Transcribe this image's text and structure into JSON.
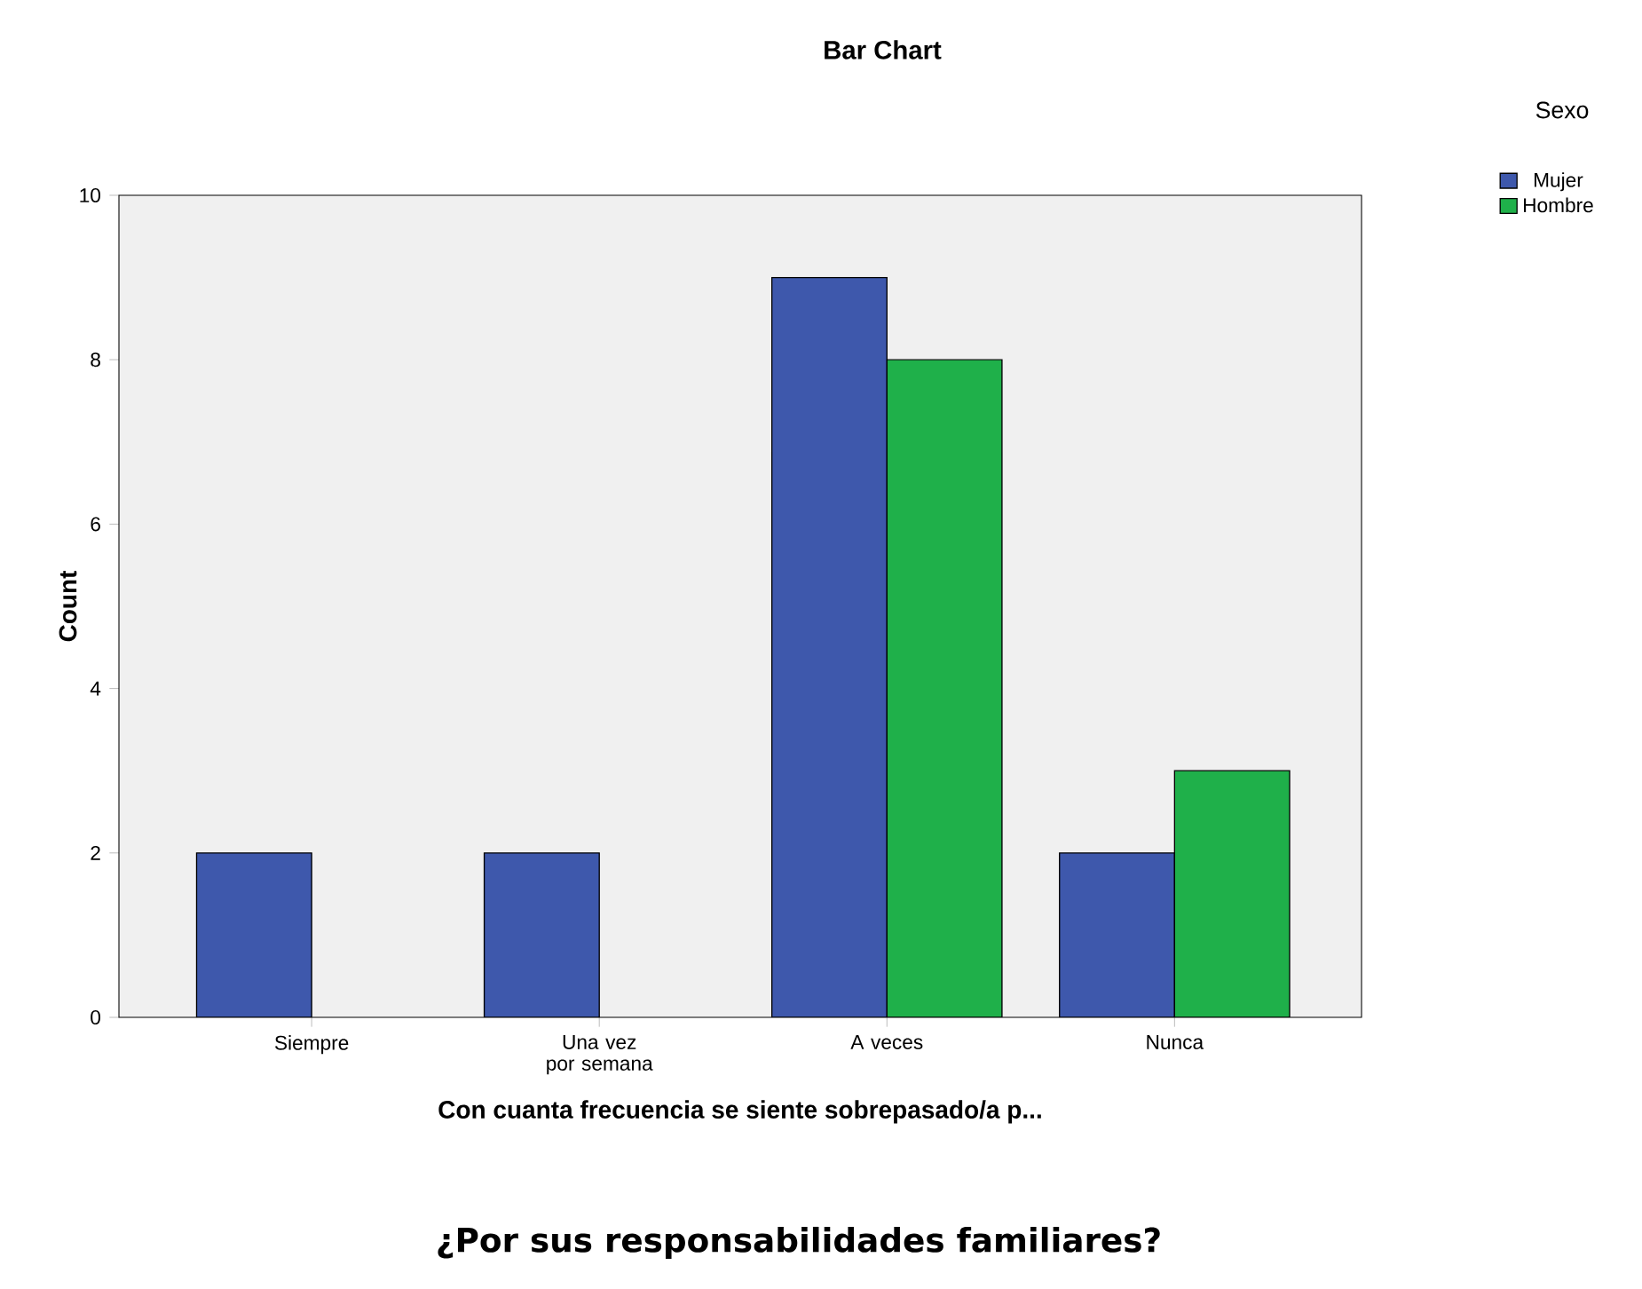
{
  "chart_data": {
    "type": "bar",
    "title": "Bar Chart",
    "categories": [
      "Siempre",
      "Una vez por semana",
      "A veces",
      "Nunca"
    ],
    "series": [
      {
        "name": "Mujer",
        "color": "#3e58ac",
        "values": [
          2,
          2,
          9,
          2
        ]
      },
      {
        "name": "Hombre",
        "color": "#1fb04a",
        "values": [
          null,
          null,
          8,
          3
        ]
      }
    ],
    "xlabel": "Con cuanta frecuencia se siente sobrepasado/a p...",
    "ylabel": "Count",
    "legend_title": "Sexo",
    "legend": "top right",
    "ylim": [
      0,
      10
    ],
    "yticks": [
      0,
      2,
      4,
      6,
      8,
      10
    ],
    "grid": false,
    "annotations": [
      "¿Por sus responsabilidades familiares?"
    ]
  }
}
